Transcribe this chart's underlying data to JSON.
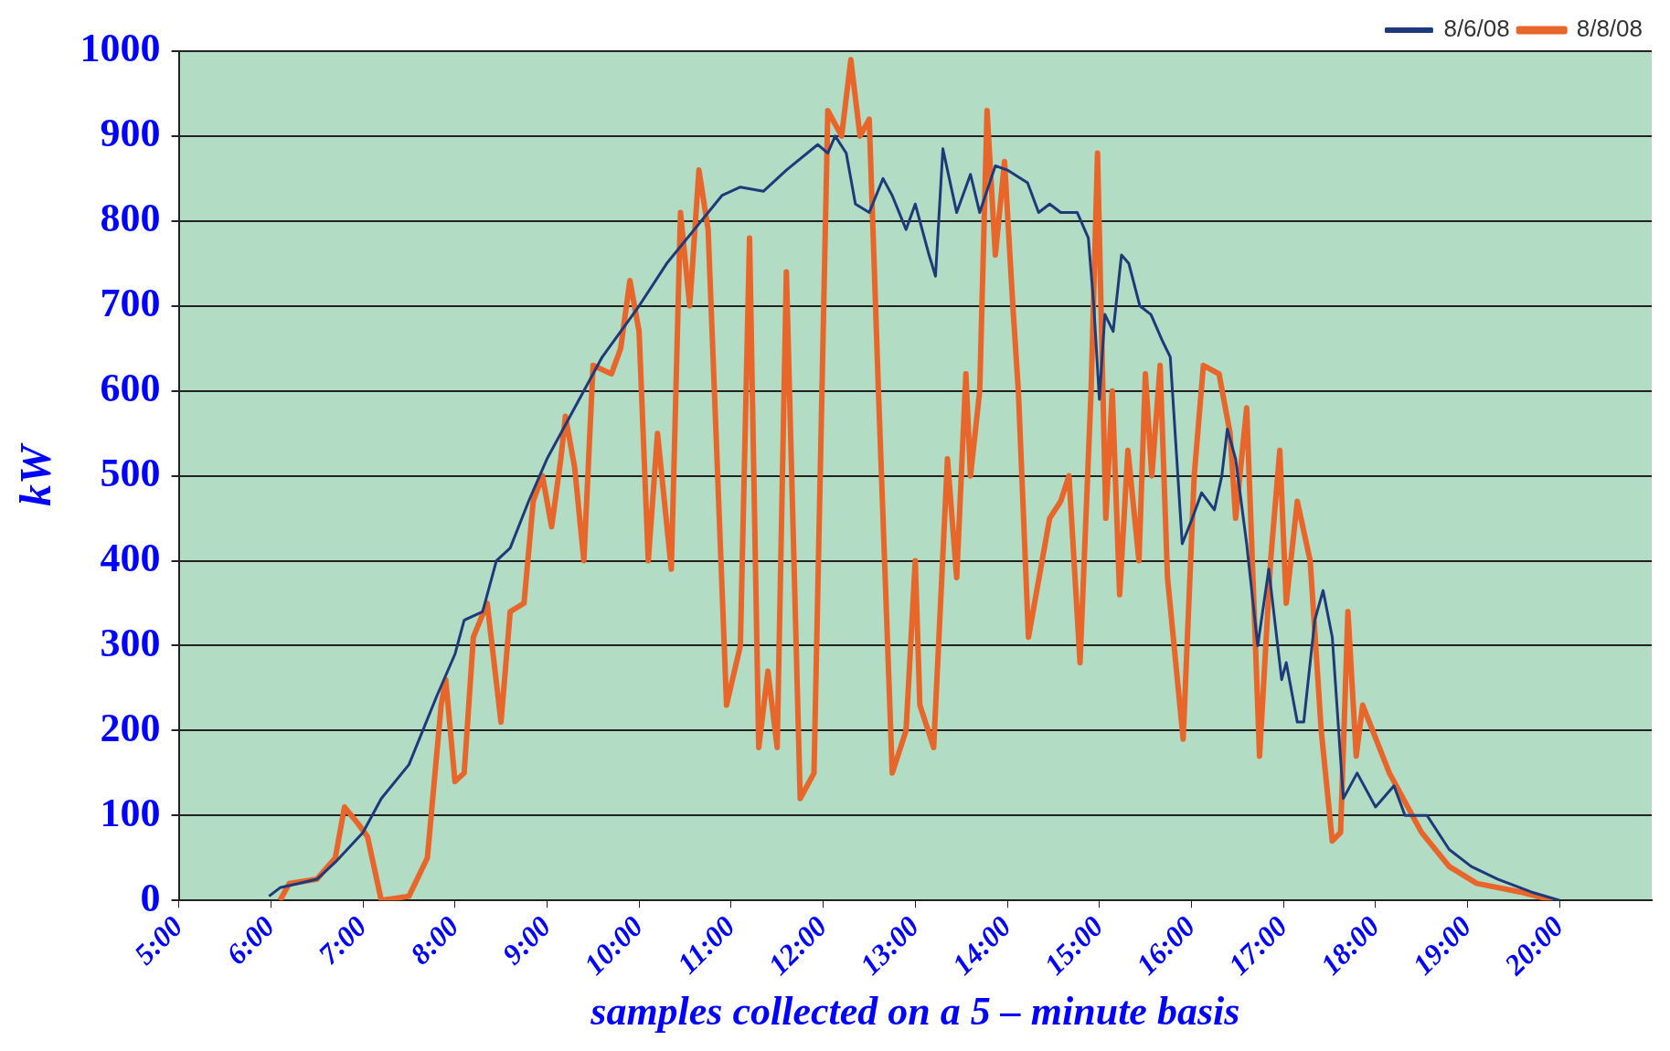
{
  "chart_data": {
    "type": "line",
    "xlabel": "samples collected on a 5 – minute basis",
    "ylabel": "kW",
    "xlim": [
      5,
      21
    ],
    "ylim": [
      0,
      1000
    ],
    "xticks": [
      {
        "value": 5,
        "label": "5:00"
      },
      {
        "value": 6,
        "label": "6:00"
      },
      {
        "value": 7,
        "label": "7:00"
      },
      {
        "value": 8,
        "label": "8:00"
      },
      {
        "value": 9,
        "label": "9:00"
      },
      {
        "value": 10,
        "label": "10:00"
      },
      {
        "value": 11,
        "label": "11:00"
      },
      {
        "value": 12,
        "label": "12:00"
      },
      {
        "value": 13,
        "label": "13:00"
      },
      {
        "value": 14,
        "label": "14:00"
      },
      {
        "value": 15,
        "label": "15:00"
      },
      {
        "value": 16,
        "label": "16:00"
      },
      {
        "value": 17,
        "label": "17:00"
      },
      {
        "value": 18,
        "label": "18:00"
      },
      {
        "value": 19,
        "label": "19:00"
      },
      {
        "value": 20,
        "label": "20:00"
      }
    ],
    "yticks": [
      0,
      100,
      200,
      300,
      400,
      500,
      600,
      700,
      800,
      900,
      1000
    ],
    "grid": "y",
    "legend": "top right",
    "marker": "none",
    "line_style": "solid",
    "series": [
      {
        "name": "8/6/08",
        "color": "#1f3a7a",
        "x": [
          5.98,
          6.1,
          6.3,
          6.5,
          6.7,
          7.0,
          7.2,
          7.5,
          7.8,
          8.0,
          8.1,
          8.3,
          8.45,
          8.6,
          8.8,
          9.0,
          9.3,
          9.6,
          10.0,
          10.3,
          10.6,
          10.9,
          11.1,
          11.35,
          11.6,
          11.94,
          12.05,
          12.13,
          12.25,
          12.35,
          12.5,
          12.65,
          12.75,
          12.9,
          13.0,
          13.15,
          13.22,
          13.3,
          13.45,
          13.6,
          13.7,
          13.87,
          14.0,
          14.22,
          14.34,
          14.46,
          14.58,
          14.76,
          14.88,
          14.94,
          15.0,
          15.06,
          15.15,
          15.24,
          15.32,
          15.44,
          15.56,
          15.68,
          15.77,
          15.9,
          16.01,
          16.11,
          16.25,
          16.33,
          16.39,
          16.48,
          16.6,
          16.72,
          16.84,
          16.98,
          17.03,
          17.15,
          17.22,
          17.34,
          17.43,
          17.53,
          17.65,
          17.8,
          18.0,
          18.2,
          18.32,
          18.56,
          18.8,
          19.04,
          19.33,
          19.69,
          20.0
        ],
        "values": [
          5,
          15,
          20,
          25,
          45,
          80,
          120,
          160,
          240,
          290,
          330,
          340,
          400,
          415,
          470,
          520,
          580,
          640,
          700,
          750,
          790,
          830,
          840,
          835,
          860,
          890,
          880,
          900,
          880,
          820,
          810,
          850,
          830,
          790,
          820,
          760,
          735,
          885,
          810,
          855,
          810,
          865,
          860,
          845,
          810,
          820,
          810,
          810,
          780,
          700,
          590,
          690,
          670,
          760,
          750,
          700,
          690,
          660,
          640,
          420,
          450,
          480,
          460,
          500,
          555,
          520,
          420,
          300,
          390,
          260,
          280,
          210,
          210,
          330,
          365,
          310,
          120,
          150,
          110,
          135,
          100,
          100,
          60,
          40,
          25,
          10,
          0
        ]
      },
      {
        "name": "8/8/08",
        "color": "#e8662a",
        "x": [
          6.1,
          6.2,
          6.5,
          6.7,
          6.8,
          6.95,
          7.05,
          7.2,
          7.5,
          7.7,
          7.85,
          7.9,
          8.0,
          8.1,
          8.2,
          8.35,
          8.5,
          8.6,
          8.75,
          8.85,
          8.95,
          9.05,
          9.15,
          9.2,
          9.3,
          9.4,
          9.5,
          9.7,
          9.8,
          9.9,
          10.0,
          10.1,
          10.2,
          10.35,
          10.45,
          10.55,
          10.65,
          10.75,
          10.95,
          11.1,
          11.2,
          11.3,
          11.4,
          11.5,
          11.6,
          11.75,
          11.9,
          12.05,
          12.2,
          12.3,
          12.4,
          12.5,
          12.6,
          12.75,
          12.9,
          13.0,
          13.05,
          13.2,
          13.35,
          13.45,
          13.55,
          13.6,
          13.7,
          13.78,
          13.87,
          13.97,
          14.06,
          14.12,
          14.23,
          14.46,
          14.58,
          14.67,
          14.79,
          14.91,
          14.98,
          15.07,
          15.14,
          15.22,
          15.31,
          15.43,
          15.5,
          15.57,
          15.66,
          15.74,
          15.91,
          16.03,
          16.13,
          16.3,
          16.42,
          16.48,
          16.6,
          16.74,
          16.86,
          16.96,
          17.03,
          17.15,
          17.29,
          17.41,
          17.53,
          17.62,
          17.7,
          17.79,
          17.86,
          18.15,
          18.5,
          18.8,
          19.1,
          19.57,
          19.93
        ],
        "values": [
          0,
          20,
          25,
          50,
          110,
          90,
          75,
          0,
          5,
          50,
          230,
          260,
          140,
          150,
          310,
          350,
          210,
          340,
          350,
          470,
          500,
          440,
          520,
          570,
          510,
          400,
          630,
          620,
          650,
          730,
          670,
          400,
          550,
          390,
          810,
          700,
          860,
          790,
          230,
          300,
          780,
          180,
          270,
          180,
          740,
          120,
          150,
          930,
          900,
          990,
          900,
          920,
          600,
          150,
          200,
          400,
          230,
          180,
          520,
          380,
          620,
          500,
          600,
          930,
          760,
          870,
          700,
          600,
          310,
          450,
          470,
          500,
          280,
          600,
          880,
          450,
          600,
          360,
          530,
          400,
          620,
          500,
          630,
          380,
          190,
          500,
          630,
          620,
          550,
          450,
          580,
          170,
          400,
          530,
          350,
          470,
          400,
          200,
          70,
          80,
          340,
          170,
          230,
          150,
          80,
          40,
          20,
          10,
          0
        ]
      }
    ]
  }
}
